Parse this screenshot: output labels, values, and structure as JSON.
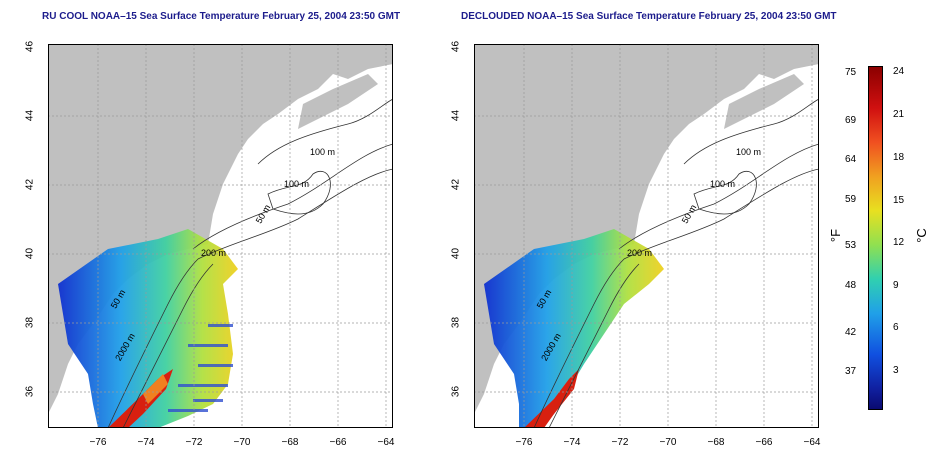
{
  "panels": [
    {
      "title": "RU COOL NOAA–15 Sea Surface Temperature February 25, 2004 23:50 GMT",
      "lat_ticks": [
        "46",
        "44",
        "42",
        "40",
        "38",
        "36"
      ],
      "lon_ticks": [
        "−76",
        "−74",
        "−72",
        "−70",
        "−68",
        "−66",
        "−64"
      ],
      "isobaths": [
        "100 m",
        "100 m",
        "50 m",
        "200 m",
        "50 m",
        "2000 m"
      ]
    },
    {
      "title": "DECLOUDED NOAA–15 Sea Surface Temperature February 25, 2004 23:50 GMT",
      "lat_ticks": [
        "46",
        "44",
        "42",
        "40",
        "38",
        "36"
      ],
      "lon_ticks": [
        "−76",
        "−74",
        "−72",
        "−70",
        "−68",
        "−66",
        "−64"
      ],
      "isobaths": [
        "100 m",
        "100 m",
        "50 m",
        "200 m",
        "50 m",
        "2000 m"
      ]
    }
  ],
  "colorbar": {
    "fahrenheit_ticks": [
      "75",
      "69",
      "64",
      "59",
      "53",
      "48",
      "42",
      "37"
    ],
    "celsius_ticks": [
      "24",
      "21",
      "18",
      "15",
      "12",
      "9",
      "6",
      "3"
    ],
    "fahrenheit_unit": "°F",
    "celsius_unit": "°C"
  },
  "colors": {
    "land": "#c0c0c0",
    "title": "#1c1c8c",
    "grid": "#9a9a9a"
  }
}
